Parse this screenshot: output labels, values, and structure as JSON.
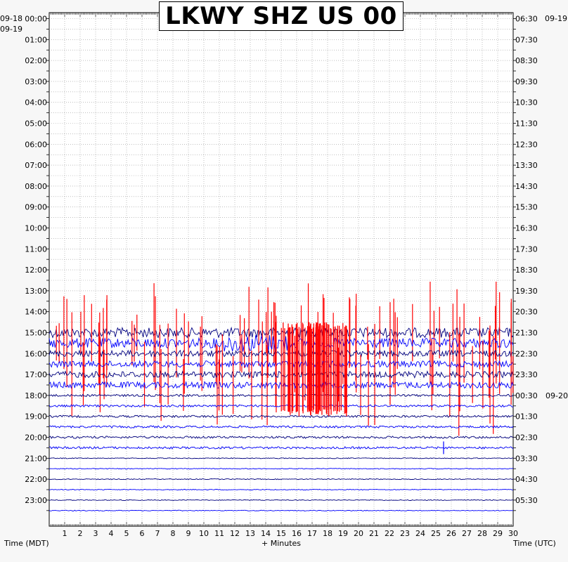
{
  "title": "LKWY SHZ US 00",
  "date_labels": {
    "left_top": "09-18",
    "left_second": "09-19",
    "right_top": "09-19",
    "right_mid": "09-20"
  },
  "footer": {
    "left": "Time (MDT)",
    "center": "+ Minutes",
    "right": "Time (UTC)"
  },
  "chart_data": {
    "type": "line",
    "title": "LKWY SHZ US 00",
    "xlabel": "+ Minutes",
    "ylabel_left": "Time (MDT)",
    "ylabel_right": "Time (UTC)",
    "xlim": [
      0,
      30
    ],
    "x_ticks": [
      "1",
      "2",
      "3",
      "4",
      "5",
      "6",
      "7",
      "8",
      "9",
      "10",
      "11",
      "12",
      "13",
      "14",
      "15",
      "16",
      "17",
      "18",
      "19",
      "20",
      "21",
      "22",
      "23",
      "24",
      "25",
      "26",
      "27",
      "28",
      "29",
      "30"
    ],
    "left_hour_labels": [
      "00:00",
      "01:00",
      "02:00",
      "03:00",
      "04:00",
      "05:00",
      "06:00",
      "07:00",
      "08:00",
      "09:00",
      "10:00",
      "11:00",
      "12:00",
      "13:00",
      "14:00",
      "15:00",
      "16:00",
      "17:00",
      "18:00",
      "19:00",
      "20:00",
      "21:00",
      "22:00",
      "23:00"
    ],
    "right_hour_labels": [
      "06:30",
      "07:30",
      "08:30",
      "09:30",
      "10:30",
      "11:30",
      "12:30",
      "13:30",
      "14:30",
      "15:30",
      "16:30",
      "17:30",
      "18:30",
      "19:30",
      "20:30",
      "21:30",
      "22:30",
      "23:30",
      "00:30",
      "01:30",
      "02:30",
      "03:30",
      "04:30",
      "05:30"
    ],
    "grid": true,
    "trace_colors": [
      "#000080",
      "#0000ff"
    ],
    "clip_color": "#ff0000",
    "traces": [
      {
        "row": 30,
        "level": "very high",
        "clipped": true
      },
      {
        "row": 31,
        "level": "very high",
        "clipped": true
      },
      {
        "row": 32,
        "level": "high",
        "clipped": true
      },
      {
        "row": 33,
        "level": "high",
        "clipped": true
      },
      {
        "row": 34,
        "level": "high",
        "clipped": true
      },
      {
        "row": 35,
        "level": "high",
        "clipped": true
      },
      {
        "row": 36,
        "level": "low",
        "clipped": false
      },
      {
        "row": 37,
        "level": "low",
        "clipped": false
      },
      {
        "row": 38,
        "level": "low",
        "clipped": false
      },
      {
        "row": 39,
        "level": "low",
        "clipped": false
      },
      {
        "row": 40,
        "level": "low",
        "clipped": false
      },
      {
        "row": 41,
        "level": "low",
        "clipped": false
      },
      {
        "row": 42,
        "level": "quiet",
        "clipped": false
      },
      {
        "row": 43,
        "level": "quiet",
        "clipped": false
      },
      {
        "row": 44,
        "level": "quiet",
        "clipped": false
      },
      {
        "row": 45,
        "level": "quiet",
        "clipped": false
      },
      {
        "row": 46,
        "level": "quiet",
        "clipped": false
      },
      {
        "row": 47,
        "level": "quiet",
        "clipped": false
      }
    ],
    "events": [
      {
        "row": 41,
        "minute": 25.5,
        "label": ""
      }
    ]
  }
}
